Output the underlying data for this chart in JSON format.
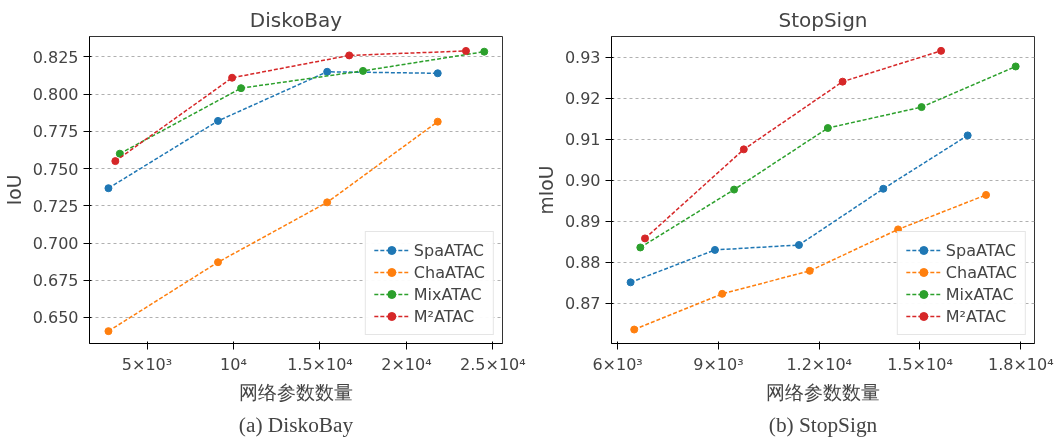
{
  "chart_data": [
    {
      "type": "line",
      "title": "DiskoBay",
      "xlabel": "网络参数数量",
      "ylabel": "IoU",
      "xlim": [
        1673,
        25558
      ],
      "ylim": [
        0.6325,
        0.8387
      ],
      "xticks": [
        {
          "value": 5000,
          "label": "5×10³"
        },
        {
          "value": 10000,
          "label": "10⁴"
        },
        {
          "value": 15000,
          "label": "1.5×10⁴"
        },
        {
          "value": 20000,
          "label": "2×10⁴"
        },
        {
          "value": 25000,
          "label": "2.5×10⁴"
        }
      ],
      "yticks": [
        {
          "value": 0.65,
          "label": "0.650"
        },
        0.675,
        {
          "value": 0.7,
          "label": "0.700"
        },
        0.725,
        {
          "value": 0.75,
          "label": "0.750"
        },
        0.775,
        {
          "value": 0.8,
          "label": "0.800"
        },
        0.825
      ],
      "grid": "y",
      "legend": "bottom right",
      "marker": "circle",
      "line_style": "dashed",
      "annotations": [
        "(a) DiskoBay"
      ],
      "series": [
        {
          "name": "SpaATAC",
          "color": "#1f77b4",
          "x": [
            2769,
            9104,
            15418,
            21812
          ],
          "values": [
            0.7368,
            0.782,
            0.815,
            0.814
          ]
        },
        {
          "name": "ChaATAC",
          "color": "#ff7f0e",
          "x": [
            2769,
            9104,
            15418,
            21812
          ],
          "values": [
            0.6408,
            0.6871,
            0.7273,
            0.7815
          ]
        },
        {
          "name": "MixATAC",
          "color": "#2ca02c",
          "x": [
            3426,
            10438,
            17490,
            24502
          ],
          "values": [
            0.76,
            0.804,
            0.8156,
            0.8285
          ]
        },
        {
          "name": "M²ATAC",
          "color": "#d62728",
          "x": [
            3167,
            9920,
            16693,
            23446
          ],
          "values": [
            0.755,
            0.811,
            0.826,
            0.829
          ]
        }
      ]
    },
    {
      "type": "line",
      "title": "StopSign",
      "xlabel": "网络参数数量",
      "ylabel": "mIoU",
      "xlim": [
        5818,
        18408
      ],
      "ylim": [
        0.8602,
        0.935
      ],
      "xticks": [
        {
          "value": 6000,
          "label": "6×10³"
        },
        {
          "value": 9000,
          "label": "9×10³"
        },
        {
          "value": 12000,
          "label": "1.2×10⁴"
        },
        {
          "value": 15000,
          "label": "1.5×10⁴"
        },
        {
          "value": 18000,
          "label": "1.8×10⁴"
        }
      ],
      "yticks": [
        0.87,
        0.88,
        0.89,
        {
          "value": 0.9,
          "label": "0.90"
        },
        0.91,
        0.92,
        0.93
      ],
      "grid": "y",
      "legend": "bottom right",
      "marker": "circle",
      "line_style": "dashed",
      "annotations": [
        "(b) StopSign"
      ],
      "series": [
        {
          "name": "SpaATAC",
          "color": "#1f77b4",
          "x": [
            6386,
            8897,
            11397,
            13908,
            16419
          ],
          "values": [
            0.8751,
            0.883,
            0.8842,
            0.8979,
            0.9109
          ]
        },
        {
          "name": "ChaATAC",
          "color": "#ff7f0e",
          "x": [
            6494,
            9112,
            11719,
            14348,
            16966
          ],
          "values": [
            0.8636,
            0.8723,
            0.8779,
            0.888,
            0.8964
          ]
        },
        {
          "name": "MixATAC",
          "color": "#2ca02c",
          "x": [
            6676,
            9467,
            12257,
            15047,
            17848
          ],
          "values": [
            0.8836,
            0.8977,
            0.9127,
            0.9178,
            0.9277
          ]
        },
        {
          "name": "M²ATAC",
          "color": "#d62728",
          "x": [
            6815,
            9756,
            12697,
            15627
          ],
          "values": [
            0.8858,
            0.9075,
            0.924,
            0.9315
          ]
        }
      ]
    }
  ]
}
